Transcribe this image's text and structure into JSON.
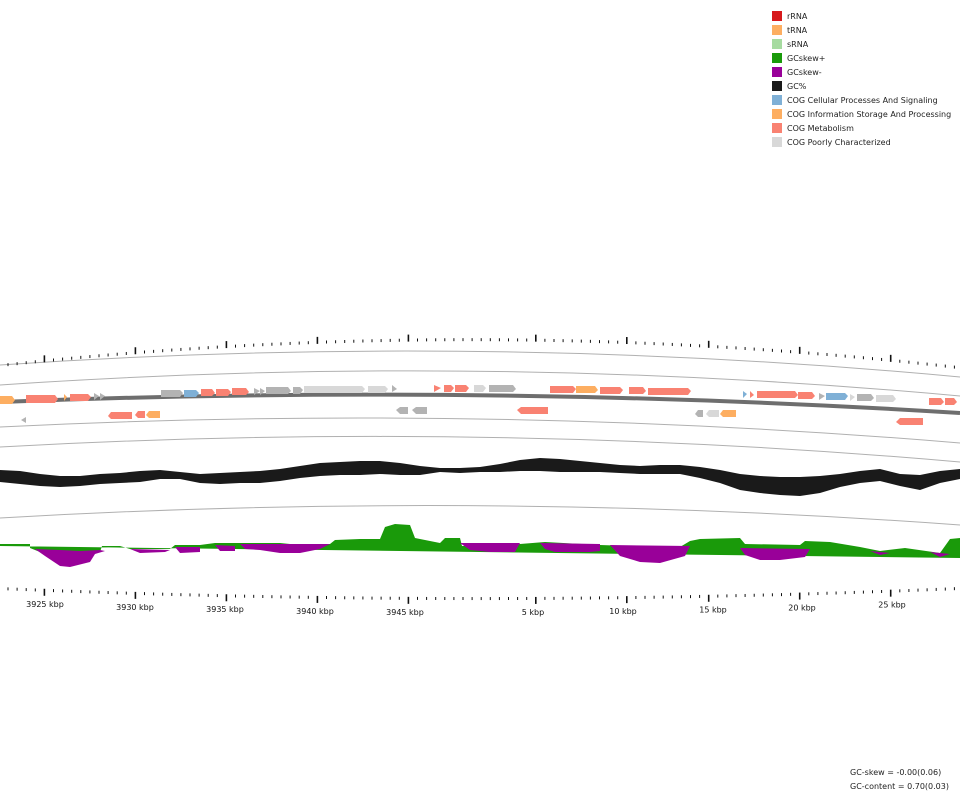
{
  "legend": [
    {
      "label": "rRNA",
      "color": "#d7191c"
    },
    {
      "label": "tRNA",
      "color": "#fdae61"
    },
    {
      "label": "sRNA",
      "color": "#a6dba0"
    },
    {
      "label": "GCskew+",
      "color": "#1a9a0a"
    },
    {
      "label": "GCskew-",
      "color": "#990099"
    },
    {
      "label": "GC%",
      "color": "#1a1a1a"
    },
    {
      "label": "COG Cellular Processes And Signaling",
      "color": "#7fb0d6"
    },
    {
      "label": "COG Information Storage And Processing",
      "color": "#fdae61"
    },
    {
      "label": "COG Metabolism",
      "color": "#f98272"
    },
    {
      "label": "COG Poorly Characterized",
      "color": "#d8d8d8"
    }
  ],
  "position_labels": [
    "3925 kbp",
    "3930 kbp",
    "3935 kbp",
    "3940 kbp",
    "3945 kbp",
    "5 kbp",
    "10 kbp",
    "15 kbp",
    "20 kbp",
    "25 kbp"
  ],
  "stats": {
    "gc_skew": "GC-skew = -0.00(0.06)",
    "gc_content": "GC-content = 0.70(0.03)"
  }
}
